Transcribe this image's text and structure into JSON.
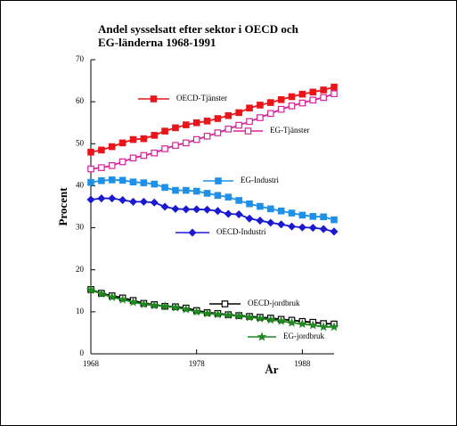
{
  "chart_data": {
    "type": "line",
    "title": [
      "Andel sysselsatt efter sektor i OECD  och",
      "EG-länderna 1968-1991"
    ],
    "x_label": "År",
    "y_label": "Procent",
    "x": [
      1968,
      1969,
      1970,
      1971,
      1972,
      1973,
      1974,
      1975,
      1976,
      1977,
      1978,
      1979,
      1980,
      1981,
      1982,
      1983,
      1984,
      1985,
      1986,
      1987,
      1988,
      1989,
      1990,
      1991
    ],
    "xlim": [
      1968,
      1991
    ],
    "xticks": [
      1968,
      1978,
      1988
    ],
    "ylim": [
      0,
      70
    ],
    "yticks": [
      0,
      10,
      20,
      30,
      40,
      50,
      60,
      70
    ],
    "series": [
      {
        "name": "OECD-Tjänster",
        "color": "#e8161b",
        "marker": "square",
        "values": [
          48,
          48.5,
          49.3,
          50.2,
          51,
          51.2,
          52,
          53,
          53.8,
          54.5,
          55,
          55.4,
          56,
          56.7,
          57.4,
          58.5,
          59.2,
          59.8,
          60.5,
          61.2,
          61.8,
          62.3,
          62.8,
          63.5
        ]
      },
      {
        "name": "EG-Tjänster",
        "color": "#d6239a",
        "marker": "open-square",
        "values": [
          44,
          44.3,
          44.8,
          45.7,
          46.6,
          47.2,
          47.8,
          48.8,
          49.6,
          50.2,
          51,
          51.8,
          52.6,
          53.5,
          54.4,
          55.3,
          56.2,
          57.2,
          58.2,
          59,
          59.7,
          60.4,
          61,
          61.9
        ]
      },
      {
        "name": "EG-Industri",
        "color": "#1e90e8",
        "marker": "square",
        "values": [
          40.8,
          41.2,
          41.4,
          41.3,
          40.9,
          40.7,
          40.4,
          39.6,
          38.9,
          38.9,
          38.7,
          38.2,
          37.7,
          37.3,
          36.5,
          35.7,
          35.1,
          34.5,
          34,
          33.5,
          33,
          32.7,
          32.6,
          31.9
        ]
      },
      {
        "name": "OECD-Industri",
        "color": "#1a1ad0",
        "marker": "diamond",
        "values": [
          36.7,
          37,
          37,
          36.6,
          36.2,
          36.2,
          36,
          35,
          34.5,
          34.4,
          34.4,
          34.3,
          34,
          33.3,
          33.2,
          32.2,
          31.7,
          31.2,
          30.8,
          30.3,
          30.1,
          30,
          29.7,
          29.1
        ]
      },
      {
        "name": "OECD-jordbruk",
        "color": "#000000",
        "marker": "open-square",
        "values": [
          15.3,
          14.4,
          13.8,
          13.3,
          12.7,
          12,
          11.7,
          11.3,
          11.2,
          10.9,
          10.3,
          9.8,
          9.6,
          9.3,
          9.1,
          8.9,
          8.7,
          8.5,
          8.2,
          8,
          7.7,
          7.5,
          7.2,
          7.1
        ]
      },
      {
        "name": "EG-jordbruk",
        "color": "#1f8a1f",
        "marker": "star",
        "values": [
          15.2,
          14.3,
          13.5,
          12.9,
          12.3,
          11.8,
          11.5,
          11.3,
          11,
          10.6,
          10,
          9.6,
          9.4,
          9.2,
          9,
          8.7,
          8.4,
          8.1,
          7.8,
          7.4,
          7.1,
          6.8,
          6.4,
          6.4
        ]
      }
    ]
  }
}
